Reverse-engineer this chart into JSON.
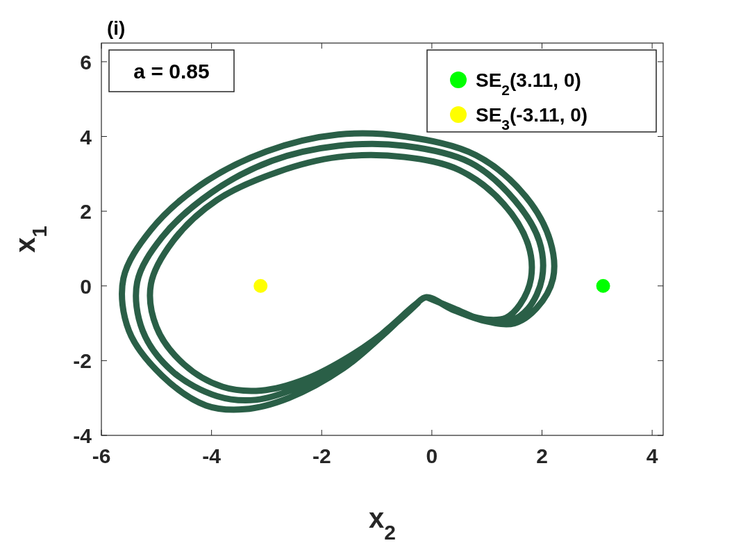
{
  "chart_data": {
    "type": "line",
    "title": "(i)",
    "xlabel": "x$_{2}$",
    "ylabel": "x$_{1}$",
    "annotations": [
      "a = 0.85"
    ],
    "xlim": [
      -6,
      4.2
    ],
    "ylim": [
      -4,
      6.5
    ],
    "xticks": [
      -6,
      -4,
      -2,
      0,
      2,
      4
    ],
    "yticks": [
      -4,
      -2,
      0,
      2,
      4,
      6
    ],
    "grid": false,
    "legend": "top right",
    "series": [
      {
        "color": "#2a5f47",
        "x": [
          -0.1,
          0.4,
          1.0,
          1.5,
          1.9,
          2.2,
          2.15,
          1.7,
          0.8,
          -0.5,
          -1.7,
          -3.0,
          -4.2,
          -5.1,
          -5.6,
          -5.5,
          -4.9,
          -4.1,
          -3.4,
          -2.6,
          -1.6,
          -0.8,
          -0.3,
          -0.1,
          0.4,
          1.0,
          1.4,
          1.75,
          2.0,
          1.95,
          1.5,
          0.7,
          -0.5,
          -1.7,
          -2.9,
          -4.0,
          -4.9,
          -5.35,
          -5.25,
          -4.7,
          -3.9,
          -3.2,
          -2.4,
          -1.5,
          -0.8,
          -0.3,
          -0.1,
          0.4,
          1.0,
          1.35,
          1.6,
          1.8,
          1.75,
          1.3,
          0.5,
          -0.5,
          -1.7,
          -2.8,
          -3.9,
          -4.7,
          -5.1,
          -5.0,
          -4.5,
          -3.8,
          -3.1,
          -2.3,
          -1.4,
          -0.7,
          -0.25
        ],
        "values": [
          -0.3,
          -0.6,
          -0.95,
          -1.0,
          -0.6,
          0.2,
          1.2,
          2.4,
          3.5,
          4.0,
          4.05,
          3.6,
          2.7,
          1.5,
          0.2,
          -1.2,
          -2.4,
          -3.2,
          -3.3,
          -3.0,
          -2.2,
          -1.2,
          -0.5,
          -0.3,
          -0.65,
          -0.95,
          -0.95,
          -0.6,
          0.2,
          1.2,
          2.3,
          3.3,
          3.75,
          3.75,
          3.35,
          2.5,
          1.3,
          0.1,
          -1.2,
          -2.3,
          -2.95,
          -3.05,
          -2.7,
          -2.0,
          -1.15,
          -0.5,
          -0.3,
          -0.65,
          -0.9,
          -0.85,
          -0.5,
          0.2,
          1.1,
          2.2,
          3.1,
          3.45,
          3.45,
          3.05,
          2.3,
          1.2,
          0.05,
          -1.1,
          -2.1,
          -2.7,
          -2.8,
          -2.5,
          -1.8,
          -1.05,
          -0.45
        ]
      },
      {
        "type": "scatter",
        "name": "SE$_{2}$(3.11, 0)",
        "color": "#00ff00",
        "marker": "circle",
        "x": [
          3.11
        ],
        "values": [
          0
        ]
      },
      {
        "type": "scatter",
        "name": "SE$_{3}$(-3.11, 0)",
        "color": "#ffff00",
        "marker": "circle",
        "x": [
          -3.11
        ],
        "values": [
          0
        ]
      }
    ]
  }
}
